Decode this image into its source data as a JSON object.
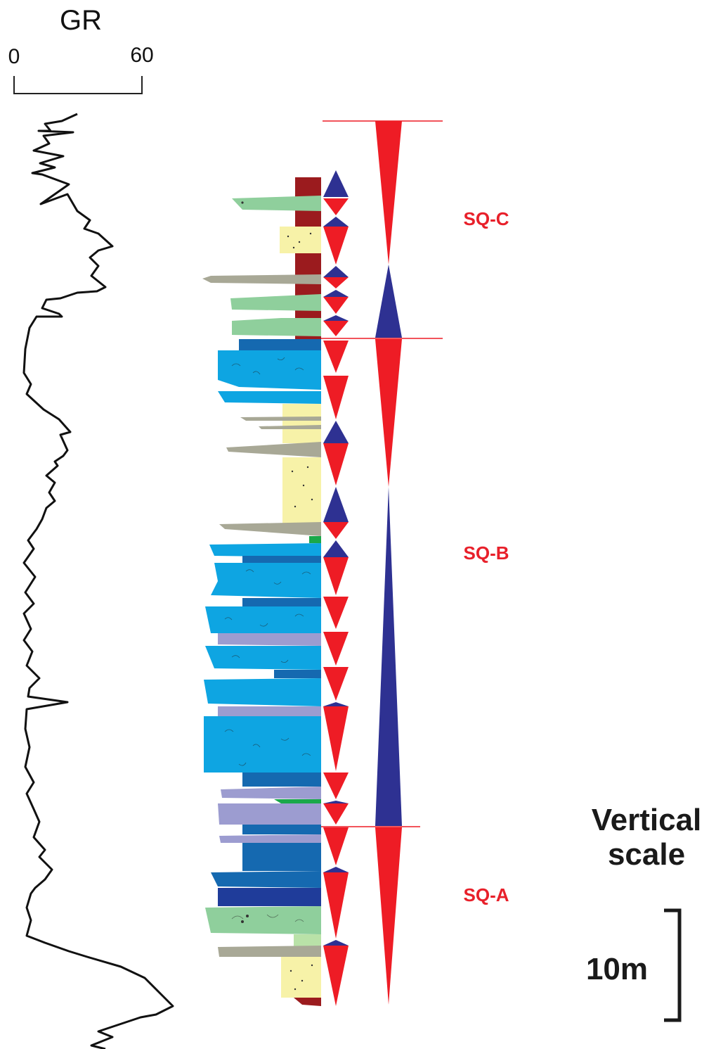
{
  "gr_log": {
    "title": "GR",
    "scale_min": "0",
    "scale_max": "60"
  },
  "sequences": [
    {
      "label": "SQ-C"
    },
    {
      "label": "SQ-B"
    },
    {
      "label": "SQ-A"
    }
  ],
  "vertical_scale": {
    "title_line1": "Vertical",
    "title_line2": "scale",
    "bar_label": "10m"
  },
  "colors": {
    "regressive_red": "#ee1c25",
    "transgressive_blue": "#2e3192",
    "boundary_line": "#ee1c25",
    "label_red": "#e8202a",
    "mudstone_brown": "#9b1b1e",
    "sandstone_yellow": "#f7f2a8",
    "limestone_light_blue": "#0ea5e2",
    "limestone_dark_blue": "#1569b0",
    "dolomite_purple": "#9c9cd0",
    "marl_green": "#8fcf9c",
    "siltstone_gray": "#a8a896",
    "shale_green": "#1aa84a"
  }
}
